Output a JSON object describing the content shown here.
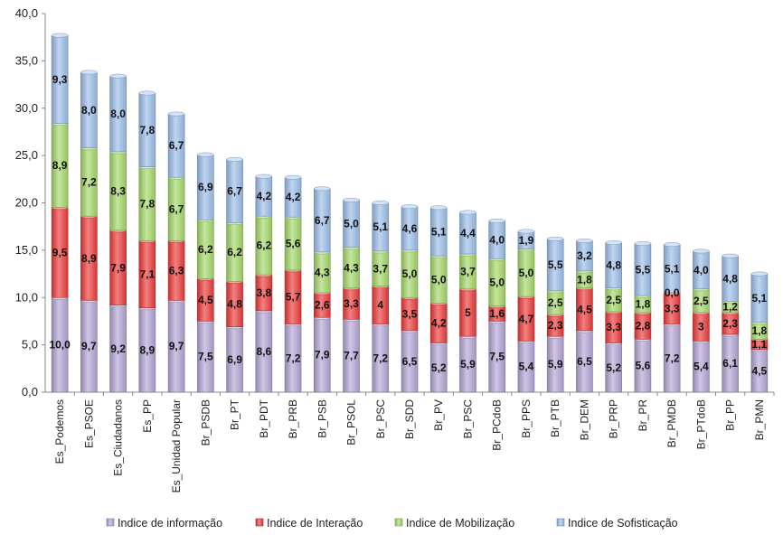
{
  "chart_data": {
    "type": "bar",
    "stacked": true,
    "title": "",
    "xlabel": "",
    "ylabel": "",
    "ylim": [
      0,
      40
    ],
    "ytick_values": [
      0,
      5,
      10,
      15,
      20,
      25,
      30,
      35,
      40
    ],
    "ytick_labels": [
      "0,0",
      "5,0",
      "10,0",
      "15,0",
      "20,0",
      "25,0",
      "30,0",
      "35,0",
      "40,0"
    ],
    "grid": "none",
    "legend_position": "bottom",
    "categories": [
      "Es_Podemos",
      "Es_PSOE",
      "Es_Ciudadanos",
      "Es_PP",
      "Es_Unidad Popular",
      "Br_PSDB",
      "Br_PT",
      "Br_PDT",
      "Br_PRB",
      "Br_PSB",
      "Br_PSOL",
      "Br_PSC",
      "Br_SDD",
      "Br_PV",
      "Br_PSC",
      "Br_PCdoB",
      "Br_PPS",
      "Br_PTB",
      "Br_DEM",
      "Br_PRP",
      "Br_PR",
      "Br_PMDB",
      "Br_PTdoB",
      "Br_PP",
      "Br_PMN"
    ],
    "series": [
      {
        "name": "Indice de informação",
        "color": "#B5A6D6",
        "values": [
          10.0,
          9.7,
          9.2,
          8.9,
          9.7,
          7.5,
          6.9,
          8.6,
          7.2,
          7.9,
          7.7,
          7.2,
          6.5,
          5.2,
          5.9,
          7.5,
          5.4,
          5.9,
          6.5,
          5.2,
          5.6,
          7.2,
          5.4,
          6.1,
          4.5
        ],
        "labels": [
          "10,0",
          "9,7",
          "9,2",
          "8,9",
          "9,7",
          "7,5",
          "6,9",
          "8,6",
          "7,2",
          "7,9",
          "7,7",
          "7,2",
          "6,5",
          "5,2",
          "5,9",
          "7,5",
          "5,4",
          "5,9",
          "6,5",
          "5,2",
          "5,6",
          "7,2",
          "5,4",
          "6,1",
          "4,5"
        ]
      },
      {
        "name": "Indice de Interação",
        "color": "#EE3B3B",
        "values": [
          9.5,
          8.9,
          7.9,
          7.1,
          6.3,
          4.5,
          4.8,
          3.8,
          5.7,
          2.6,
          3.3,
          4,
          3.5,
          4.2,
          5,
          1.6,
          4.7,
          2.3,
          4.5,
          3.3,
          2.8,
          3.3,
          3,
          2.3,
          1.1
        ],
        "labels": [
          "9,5",
          "8,9",
          "7,9",
          "7,1",
          "6,3",
          "4,5",
          "4,8",
          "3,8",
          "5,7",
          "2,6",
          "3,3",
          "4",
          "3,5",
          "4,2",
          "5",
          "1,6",
          "4,7",
          "2,3",
          "4,5",
          "3,3",
          "2,8",
          "3,3",
          "3",
          "2,3",
          "1,1"
        ]
      },
      {
        "name": "Indice de Mobilização",
        "color": "#A6D96A",
        "values": [
          8.9,
          7.2,
          8.3,
          7.8,
          6.7,
          6.2,
          6.2,
          6.2,
          5.6,
          4.3,
          4.3,
          3.7,
          5.0,
          5.0,
          3.7,
          5.0,
          5.0,
          2.5,
          1.8,
          2.5,
          1.8,
          0.0,
          2.5,
          1.2,
          1.8
        ],
        "labels": [
          "8,9",
          "7,2",
          "8,3",
          "7,8",
          "6,7",
          "6,2",
          "6,2",
          "6,2",
          "5,6",
          "4,3",
          "4,3",
          "3,7",
          "5,0",
          "5,0",
          "3,7",
          "5,0",
          "5,0",
          "2,5",
          "1,8",
          "2,5",
          "1,8",
          "0,0",
          "2,5",
          "1,2",
          "1,8"
        ]
      },
      {
        "name": "Indice de Sofisticação",
        "color": "#9DBFEA",
        "values": [
          9.3,
          8.0,
          8.0,
          7.8,
          6.7,
          6.9,
          6.7,
          4.2,
          4.2,
          6.7,
          5.0,
          5.1,
          4.6,
          5.1,
          4.4,
          4.0,
          1.9,
          5.5,
          3.2,
          4.8,
          5.5,
          5.1,
          4.0,
          4.8,
          5.1
        ],
        "labels": [
          "9,3",
          "8,0",
          "8,0",
          "7,8",
          "6,7",
          "6,9",
          "6,7",
          "4,2",
          "4,2",
          "6,7",
          "5,0",
          "5,1",
          "4,6",
          "5,1",
          "4,4",
          "4,0",
          "1,9",
          "5,5",
          "3,2",
          "4,8",
          "5,5",
          "5,1",
          "4,0",
          "4,8",
          "5,1"
        ]
      }
    ]
  }
}
